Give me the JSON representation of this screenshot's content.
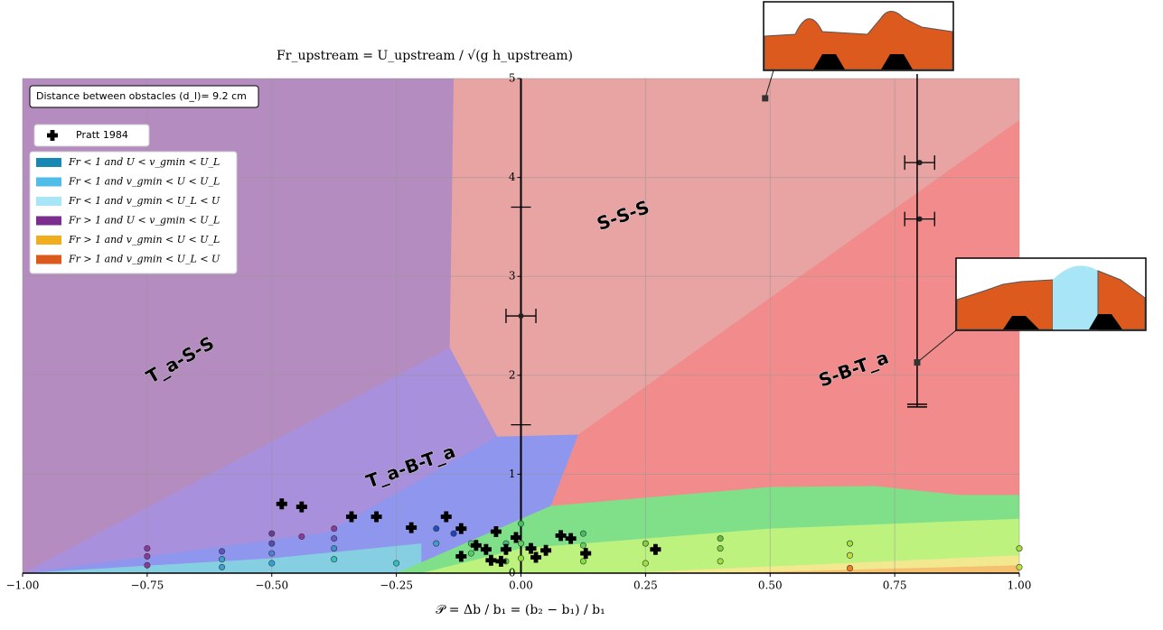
{
  "chart_data": {
    "type": "regime-map",
    "title": "Fr_upstream = U_upstream / √(g h_upstream)",
    "xlabel": "𝒫 = Δb / b₁ = (b₂ − b₁) / b₁",
    "xlim": [
      -1,
      1
    ],
    "ylim": [
      0,
      5
    ],
    "xticks": [
      {
        "value": -1,
        "label": "−1.00"
      },
      {
        "value": -0.75,
        "label": "−0.75"
      },
      {
        "value": -0.5,
        "label": "−0.50"
      },
      {
        "value": -0.25,
        "label": "−0.25"
      },
      {
        "value": 0,
        "label": "0.00"
      },
      {
        "value": 0.25,
        "label": "0.25"
      },
      {
        "value": 0.5,
        "label": "0.50"
      },
      {
        "value": 0.75,
        "label": "0.75"
      },
      {
        "value": 1,
        "label": "1.00"
      }
    ],
    "yticks": [
      0,
      1,
      2,
      3,
      4,
      5
    ],
    "grid": true,
    "box_note": "Distance between obstacles (d_l)= 9.2 cm",
    "regions": [
      {
        "color": "#b58cbf",
        "x": [
          -1,
          -1,
          1,
          1
        ],
        "y": [
          0,
          5,
          5,
          0
        ]
      },
      {
        "color": "#e8a3a3",
        "x": [
          -0.135,
          1,
          1,
          0.06,
          -0.048,
          -0.143
        ],
        "y": [
          5,
          5,
          0.79,
          0.68,
          1.38,
          2.28
        ]
      },
      {
        "color": "#f28c8c",
        "x": [
          1,
          1,
          0.06,
          0.115
        ],
        "y": [
          4.58,
          0.79,
          0.68,
          1.4
        ]
      },
      {
        "color": "#a890dc",
        "x": [
          -1,
          -0.143,
          -0.048,
          0.06,
          0
        ],
        "y": [
          0,
          2.28,
          1.38,
          0.68,
          0
        ]
      },
      {
        "color": "#8f96ee",
        "x": [
          -1,
          -0.39,
          -0.048,
          0.115,
          0.06,
          0
        ],
        "y": [
          0,
          0.41,
          1.38,
          1.4,
          0.68,
          0
        ]
      },
      {
        "color": "#86cfe2",
        "x": [
          -1,
          -0.5,
          -0.2,
          -0.2
        ],
        "y": [
          0,
          0.15,
          0.3,
          0
        ]
      },
      {
        "color": "#80e08a",
        "x": [
          -0.25,
          0.06,
          0.5,
          0.71,
          0.88,
          1,
          1
        ],
        "y": [
          0,
          0.68,
          0.87,
          0.88,
          0.79,
          0.79,
          0
        ]
      },
      {
        "color": "#bdf27f",
        "x": [
          -0.2,
          0,
          0.5,
          1,
          1
        ],
        "y": [
          0,
          0.25,
          0.45,
          0.55,
          0
        ]
      },
      {
        "color": "#f2e890",
        "x": [
          0.2,
          1,
          1
        ],
        "y": [
          0,
          0.18,
          0
        ]
      },
      {
        "color": "#f5c070",
        "x": [
          0.4,
          1,
          1
        ],
        "y": [
          0,
          0.08,
          0
        ]
      }
    ],
    "region_labels": [
      {
        "text": "T_a-S-S",
        "color": "#5a1a6e"
      },
      {
        "text": "T_a-B-T_a",
        "color": "#4a1a7e"
      },
      {
        "text": "S-S-S",
        "color": "#b02020"
      },
      {
        "text": "S-B-T_a",
        "color": "#d01010"
      }
    ],
    "series": [
      {
        "name": "Pratt 1984",
        "color": "#000000",
        "x": [
          -0.48,
          -0.44,
          -0.34,
          -0.29,
          -0.22,
          -0.15,
          -0.12,
          -0.05,
          -0.09,
          -0.07,
          -0.03,
          -0.01,
          0.05,
          0.08,
          0.1,
          0.13,
          0.27,
          -0.12,
          -0.06,
          -0.04,
          0.03,
          0.02
        ],
        "y": [
          0.7,
          0.67,
          0.57,
          0.57,
          0.46,
          0.57,
          0.45,
          0.42,
          0.28,
          0.24,
          0.24,
          0.36,
          0.23,
          0.38,
          0.35,
          0.2,
          0.24,
          0.17,
          0.13,
          0.12,
          0.16,
          0.25
        ]
      }
    ],
    "markers": {
      "x": [
        -0.75,
        -0.75,
        -0.75,
        -0.6,
        -0.6,
        -0.6,
        -0.5,
        -0.5,
        -0.5,
        -0.5,
        -0.44,
        -0.375,
        -0.375,
        -0.375,
        -0.375,
        -0.25,
        -0.17,
        -0.17,
        -0.135,
        -0.1,
        -0.1,
        -0.03,
        -0.03,
        0,
        0,
        0,
        0.125,
        0.125,
        0.125,
        0.25,
        0.25,
        0.4,
        0.4,
        0.4,
        0.66,
        0.66,
        0.66,
        1,
        1
      ],
      "y": [
        0.08,
        0.17,
        0.25,
        0.06,
        0.14,
        0.22,
        0.1,
        0.2,
        0.3,
        0.4,
        0.37,
        0.14,
        0.25,
        0.35,
        0.45,
        0.1,
        0.3,
        0.45,
        0.4,
        0.2,
        0.3,
        0.12,
        0.3,
        0.15,
        0.3,
        0.5,
        0.12,
        0.28,
        0.4,
        0.1,
        0.3,
        0.12,
        0.25,
        0.35,
        0.05,
        0.18,
        0.3,
        0.06,
        0.25
      ],
      "colors": [
        "#8a3a9a",
        "#8a3a9a",
        "#8a3a9a",
        "#3aa0d0",
        "#3aa0d0",
        "#6050c0",
        "#2fa4d8",
        "#4f7fd0",
        "#5a4ab8",
        "#6a3a9a",
        "#8a3a9a",
        "#3ac0c0",
        "#3a90d0",
        "#6a5ac0",
        "#8a3a9a",
        "#30c0c0",
        "#3aa0d0",
        "#2050c0",
        "#2040c0",
        "#50d060",
        "#50d060",
        "#60d050",
        "#40c080",
        "#90e040",
        "#60d060",
        "#40c060",
        "#80e040",
        "#60d060",
        "#40c060",
        "#a0e040",
        "#80d040",
        "#a0e040",
        "#80d040",
        "#60c040",
        "#f08020",
        "#c0e040",
        "#a0e040",
        "#c0e040",
        "#a0e040"
      ]
    },
    "errorbars": {
      "x": [
        0,
        0.8,
        0.8
      ],
      "y": [
        2.6,
        4.15,
        3.58
      ],
      "xerr": [
        0.03,
        0.03,
        0.03
      ],
      "yerr": [
        1.1,
        null,
        null
      ]
    },
    "range_line": {
      "x": 0.795,
      "y": [
        1.68,
        5
      ]
    },
    "squares": {
      "x": [
        0.49,
        0.795
      ],
      "y": [
        4.8,
        2.13
      ]
    },
    "legend_patches": [
      {
        "name": "Fr < 1 and U < v_gmin < U_L",
        "color": "#1787b3"
      },
      {
        "name": "Fr < 1 and v_gmin < U < U_L",
        "color": "#4fbde8"
      },
      {
        "name": "Fr < 1 and v_gmin < U_L < U",
        "color": "#a8e6f7"
      },
      {
        "name": "Fr > 1 and U < v_gmin < U_L",
        "color": "#7b2e8e"
      },
      {
        "name": "Fr > 1 and v_gmin < U < U_L",
        "color": "#f0ad1e"
      },
      {
        "name": "Fr > 1 and v_gmin < U_L < U",
        "color": "#dd5a1e"
      }
    ]
  }
}
